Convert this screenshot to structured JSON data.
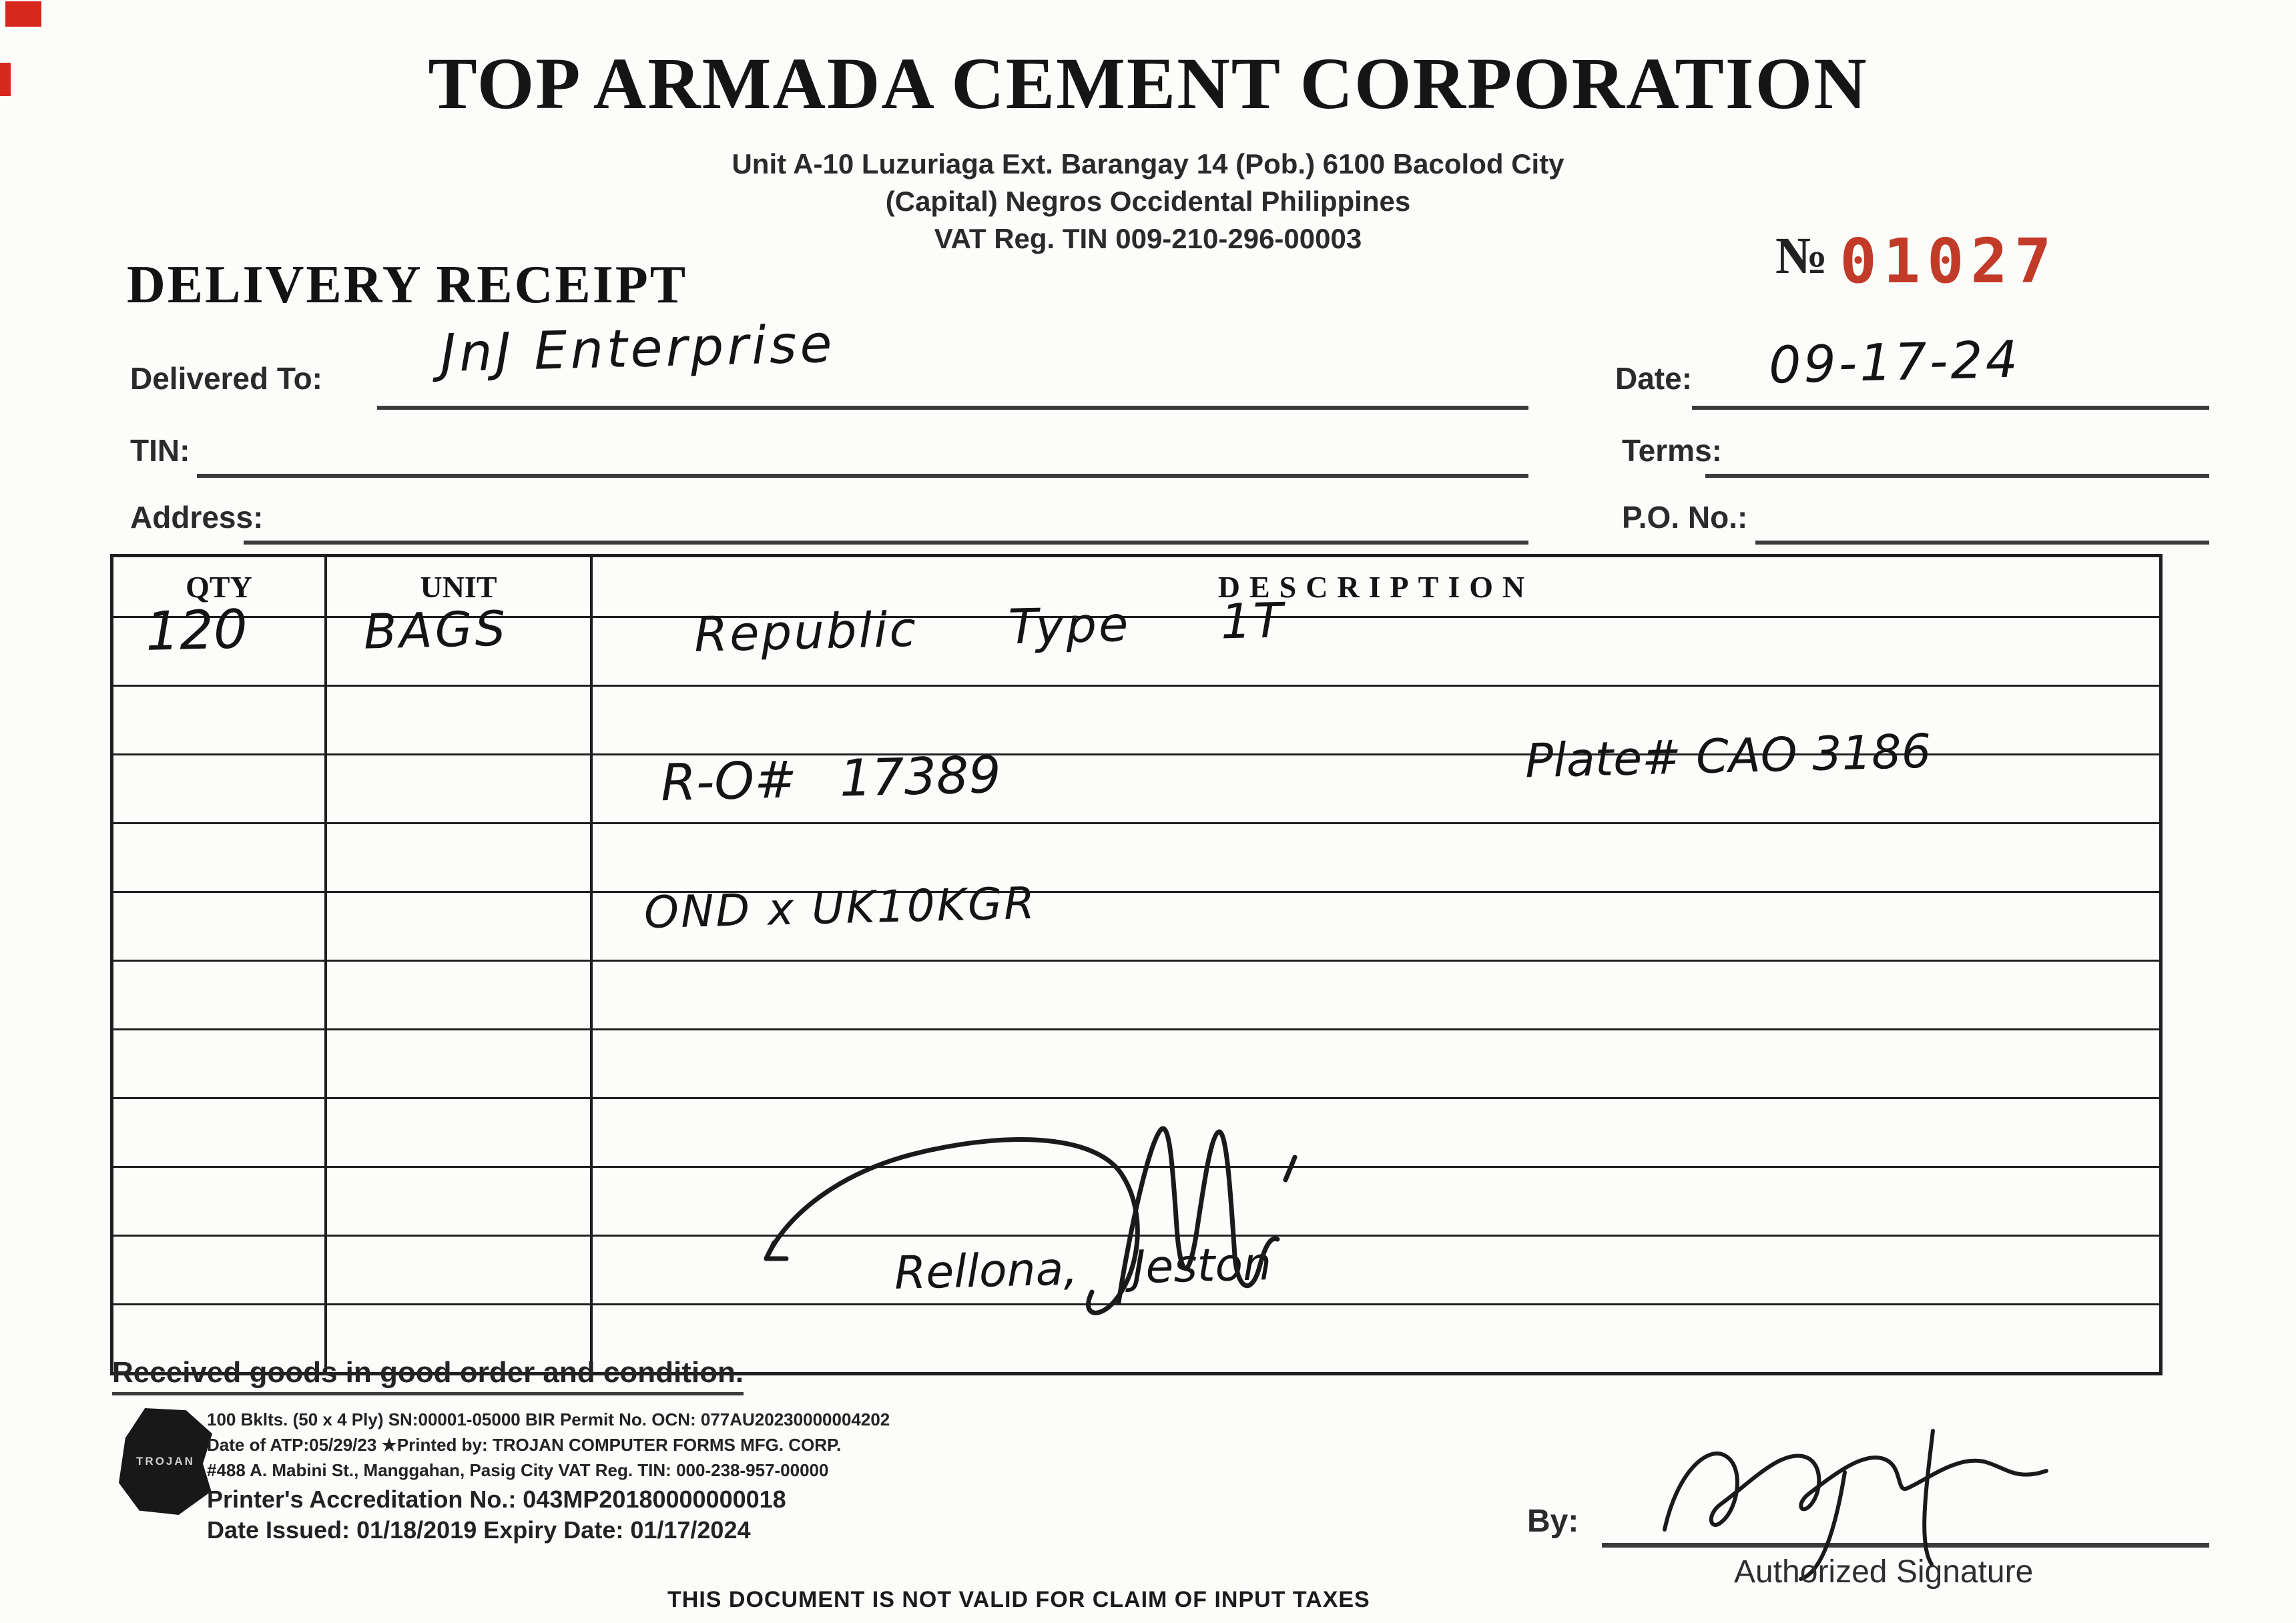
{
  "company": {
    "name": "TOP ARMADA CEMENT CORPORATION",
    "address_line1": "Unit A-10 Luzuriaga Ext. Barangay 14 (Pob.) 6100 Bacolod City",
    "address_line2": "(Capital) Negros Occidental Philippines",
    "vat_line": "VAT Reg. TIN 009-210-296-00003"
  },
  "receipt": {
    "number_symbol": "№",
    "number": "01027",
    "title": "DELIVERY RECEIPT"
  },
  "fields": {
    "delivered_to": {
      "label": "Delivered To:",
      "value": "JnJ Enterprise"
    },
    "tin": {
      "label": "TIN:",
      "value": ""
    },
    "address": {
      "label": "Address:",
      "value": ""
    },
    "date": {
      "label": "Date:",
      "value": "09-17-24"
    },
    "terms": {
      "label": "Terms:",
      "value": ""
    },
    "po_no": {
      "label": "P.O. No.:",
      "value": ""
    }
  },
  "table": {
    "headers": [
      "QTY",
      "UNIT",
      "DESCRIPTION"
    ],
    "row_count": 11,
    "entries": {
      "qty": "120",
      "unit": "BAGS",
      "description": "Republic Type 1T",
      "ro_number": "R-O# 17389",
      "plate_number": "Plate# CAO 3186",
      "spec_code": "OND x UK10KGR",
      "received_by_names": "Rellona, Jeston"
    }
  },
  "footer": {
    "received_note": "Received goods in good order and condition.",
    "fine_print": {
      "line1": "100 Bklts. (50 x 4 Ply) SN:00001-05000 BIR Permit No. OCN: 077AU20230000004202",
      "line2_prefix": "Date of ATP:05/29/23   ★Printed by: ",
      "line2_bold": "TROJAN COMPUTER FORMS MFG. CORP.",
      "line3": "#488 A. Mabini St., Manggahan, Pasig City  VAT Reg. TIN: 000-238-957-00000",
      "accreditation": "Printer's Accreditation No.: 043MP20180000000018",
      "dates": "Date Issued: 01/18/2019   Expiry Date: 01/17/2024"
    },
    "logo_text": "TROJAN",
    "by_label": "By:",
    "authorized_label": "Authorized Signature",
    "disclaimer": "THIS DOCUMENT IS NOT VALID FOR CLAIM OF INPUT TAXES"
  },
  "colors": {
    "number_red": "#c23a28",
    "ink": "#1d1d1d"
  }
}
